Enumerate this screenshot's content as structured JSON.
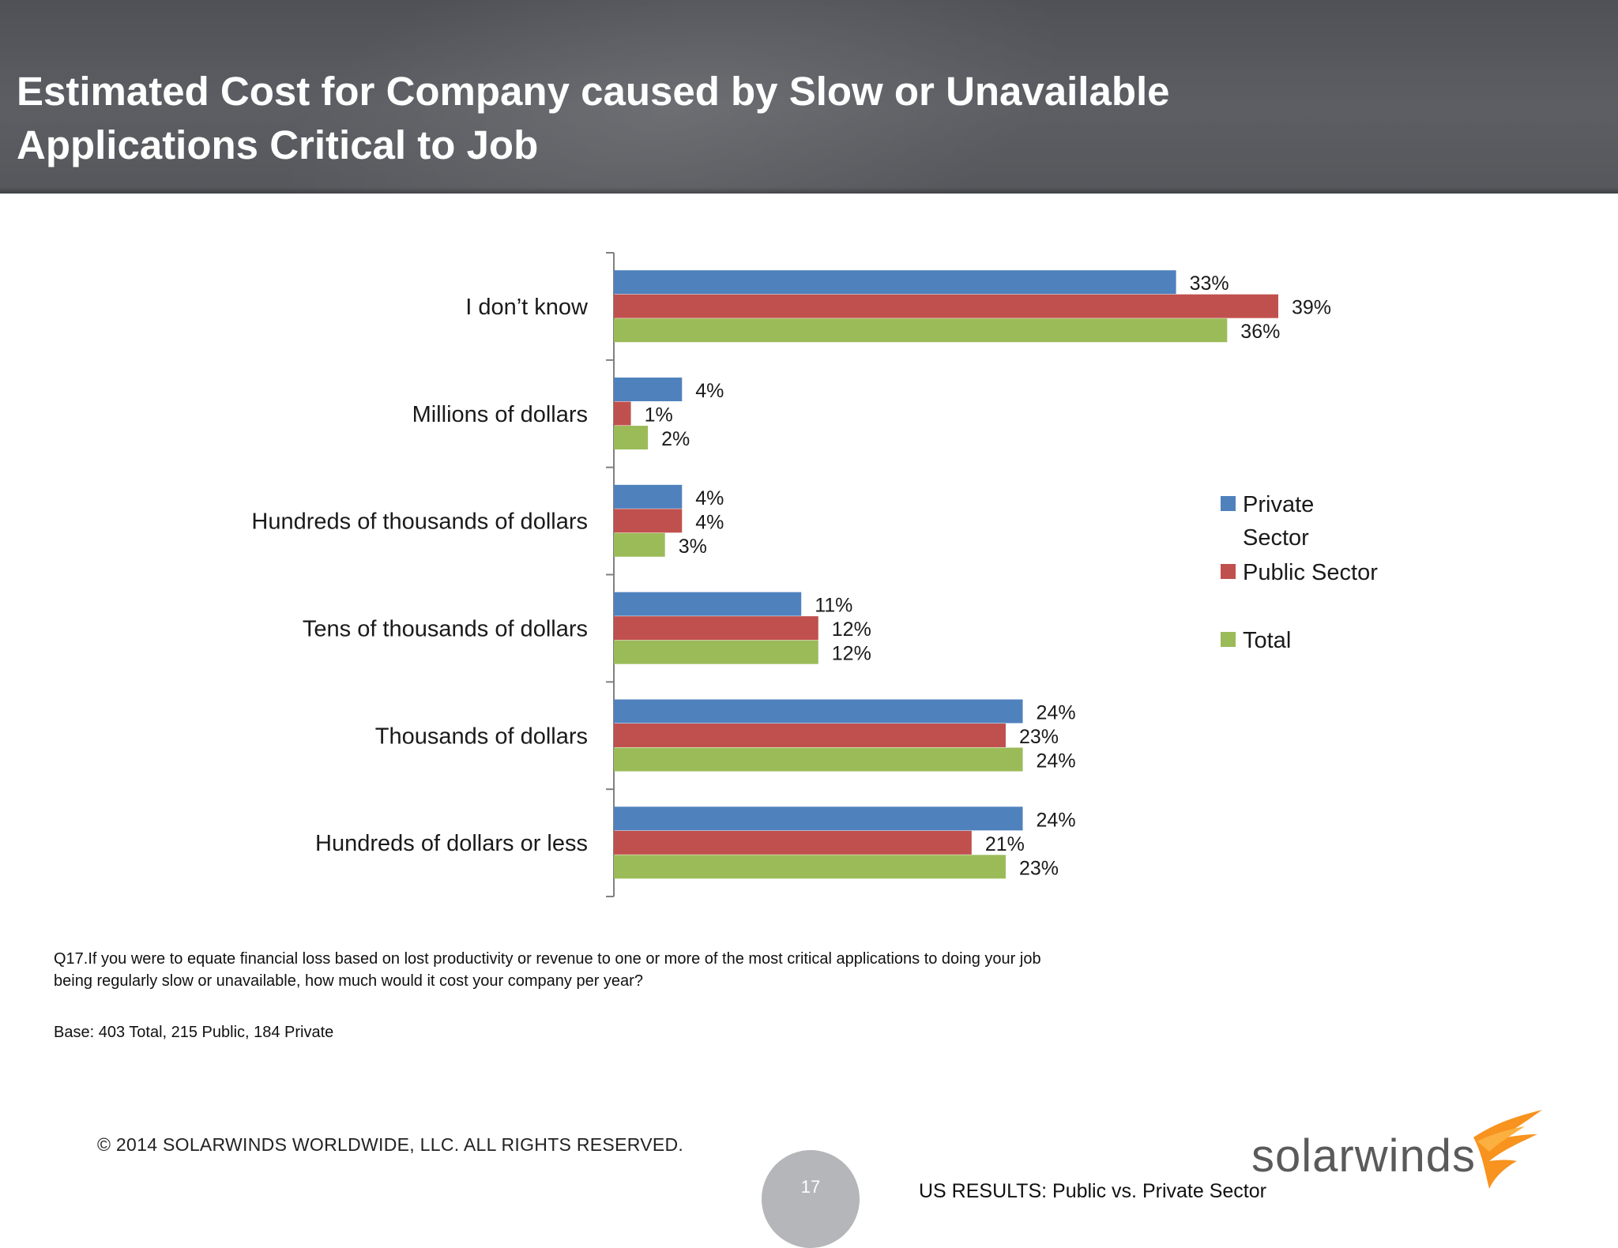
{
  "header": {
    "title_line1": "Estimated Cost for Company caused by Slow or Unavailable",
    "title_line2": "Applications Critical to Job"
  },
  "chart_data": {
    "type": "bar",
    "orientation": "horizontal",
    "categories": [
      "I don’t know",
      "Millions of dollars",
      "Hundreds of thousands of dollars",
      "Tens of thousands of dollars",
      "Thousands of dollars",
      "Hundreds of dollars or less"
    ],
    "series": [
      {
        "name": "Private Sector",
        "color": "#4f81bd",
        "values": [
          33,
          4,
          4,
          11,
          24,
          24
        ]
      },
      {
        "name": "Public Sector",
        "color": "#c0504d",
        "values": [
          39,
          1,
          4,
          12,
          23,
          21
        ]
      },
      {
        "name": "Total",
        "color": "#9bbb59",
        "values": [
          36,
          2,
          3,
          12,
          24,
          23
        ]
      }
    ],
    "value_suffix": "%",
    "xlim": [
      0,
      39
    ],
    "grid": false,
    "legend": "right",
    "legend_labels": [
      {
        "lines": [
          "Private",
          "Sector"
        ]
      },
      {
        "lines": [
          "Public Sector"
        ]
      },
      {
        "lines": [
          "Total"
        ]
      }
    ]
  },
  "footer": {
    "question": "Q17.If you were to equate financial loss based on lost productivity or revenue to one or more of the most critical applications to doing your job being regularly slow or unavailable, how much would it cost your company per year?",
    "base": "Base:  403  Total, 215 Public, 184 Private",
    "copyright": "© 2014 SOLARWINDS WORLDWIDE, LLC.  ALL RIGHTS RESERVED.",
    "page_number": "17",
    "section_label": "US RESULTS:  Public vs. Private Sector",
    "logo_text": "solarwinds"
  }
}
